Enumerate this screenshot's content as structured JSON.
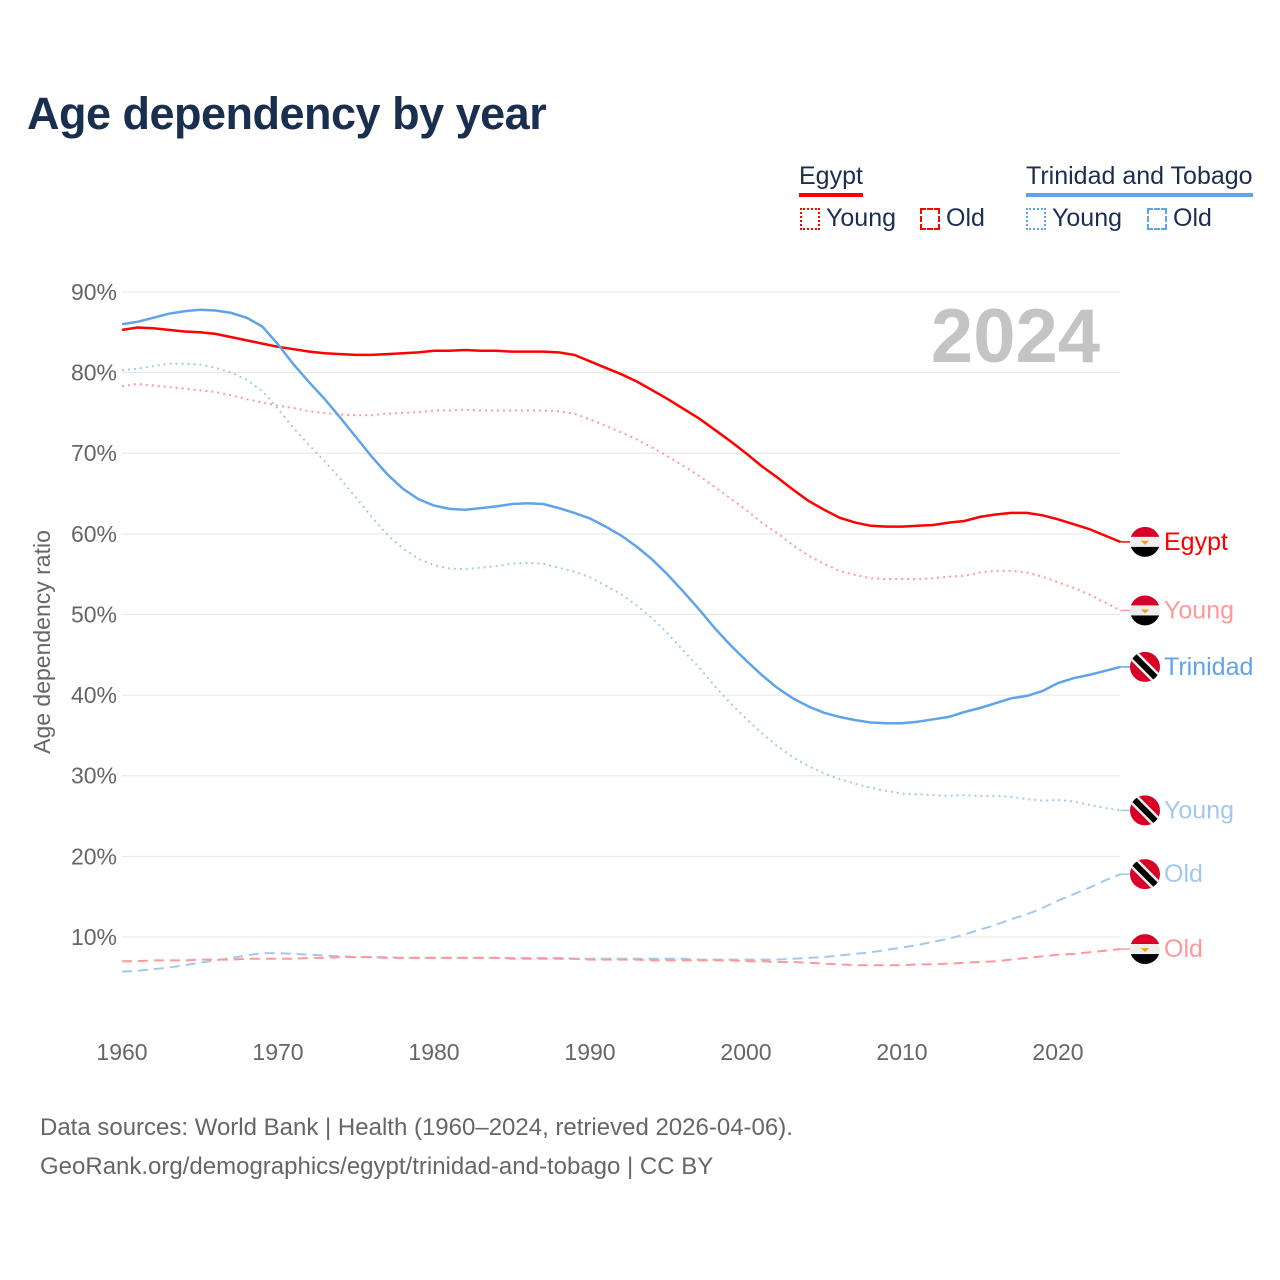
{
  "title": "Age dependency by year",
  "legend": {
    "groups": [
      {
        "name": "Egypt",
        "color": "#ff0000",
        "light": "#ff9999",
        "items": [
          "Young",
          "Old"
        ]
      },
      {
        "name": "Trinidad and Tobago",
        "color": "#5fa3e8",
        "light": "#a3c8f0",
        "items": [
          "Young",
          "Old"
        ]
      }
    ]
  },
  "year_badge": "2024",
  "source_line1": "Data sources: World Bank | Health (1960–2024, retrieved 2026-04-06).",
  "source_line2": "GeoRank.org/demographics/egypt/trinidad-and-tobago | CC BY",
  "chart_data": {
    "type": "line",
    "title": "Age dependency by year",
    "xlabel": "",
    "ylabel": "Age dependency ratio",
    "xlim": [
      1960,
      2024
    ],
    "ylim": [
      0,
      90
    ],
    "x_ticks": [
      1960,
      1970,
      1980,
      1990,
      2000,
      2010,
      2020
    ],
    "y_ticks": [
      10,
      20,
      30,
      40,
      50,
      60,
      70,
      80,
      90
    ],
    "y_tick_labels": [
      "10%",
      "20%",
      "30%",
      "40%",
      "50%",
      "60%",
      "70%",
      "80%",
      "90%"
    ],
    "grid": true,
    "x_start": 1960,
    "series": [
      {
        "name": "Egypt",
        "end_label": "Egypt",
        "country": "egypt",
        "style": "solid",
        "color": "#ff0000",
        "values": [
          85.3,
          85.6,
          85.5,
          85.3,
          85.1,
          85.0,
          84.8,
          84.4,
          84.0,
          83.6,
          83.2,
          82.9,
          82.6,
          82.4,
          82.3,
          82.2,
          82.2,
          82.3,
          82.4,
          82.5,
          82.7,
          82.7,
          82.8,
          82.7,
          82.7,
          82.6,
          82.6,
          82.6,
          82.5,
          82.2,
          81.4,
          80.6,
          79.8,
          78.9,
          77.8,
          76.7,
          75.5,
          74.3,
          72.9,
          71.5,
          70.0,
          68.4,
          67.0,
          65.5,
          64.1,
          63.0,
          62.0,
          61.4,
          61.0,
          60.9,
          60.9,
          61.0,
          61.1,
          61.4,
          61.6,
          62.1,
          62.4,
          62.6,
          62.6,
          62.3,
          61.8,
          61.2,
          60.6,
          59.8,
          59.0
        ]
      },
      {
        "name": "Egypt Young",
        "end_label": "Young",
        "country": "egypt",
        "style": "dotted",
        "color": "#ff9999",
        "values": [
          78.3,
          78.6,
          78.4,
          78.2,
          78.0,
          77.8,
          77.6,
          77.2,
          76.7,
          76.3,
          75.9,
          75.6,
          75.2,
          75.0,
          74.8,
          74.7,
          74.7,
          74.9,
          75.0,
          75.1,
          75.3,
          75.3,
          75.4,
          75.3,
          75.3,
          75.3,
          75.3,
          75.3,
          75.2,
          74.9,
          74.2,
          73.4,
          72.6,
          71.7,
          70.7,
          69.6,
          68.4,
          67.2,
          65.8,
          64.4,
          63.0,
          61.4,
          60.1,
          58.6,
          57.3,
          56.3,
          55.4,
          54.9,
          54.5,
          54.4,
          54.4,
          54.4,
          54.5,
          54.7,
          54.8,
          55.2,
          55.4,
          55.4,
          55.2,
          54.7,
          54.0,
          53.3,
          52.5,
          51.5,
          50.5
        ]
      },
      {
        "name": "Trinidad and Tobago",
        "end_label": "Trinidad",
        "country": "tt",
        "style": "solid",
        "color": "#5fa3e8",
        "values": [
          86.0,
          86.3,
          86.8,
          87.3,
          87.6,
          87.8,
          87.7,
          87.4,
          86.8,
          85.7,
          83.5,
          81.0,
          78.8,
          76.7,
          74.4,
          72.0,
          69.6,
          67.4,
          65.6,
          64.3,
          63.5,
          63.1,
          63.0,
          63.2,
          63.4,
          63.7,
          63.8,
          63.7,
          63.2,
          62.6,
          61.9,
          60.9,
          59.8,
          58.4,
          56.8,
          54.9,
          52.8,
          50.6,
          48.3,
          46.2,
          44.3,
          42.5,
          40.9,
          39.6,
          38.6,
          37.8,
          37.3,
          36.9,
          36.6,
          36.5,
          36.5,
          36.7,
          37.0,
          37.3,
          37.9,
          38.4,
          39.0,
          39.6,
          39.9,
          40.5,
          41.5,
          42.1,
          42.5,
          43.0,
          43.5
        ]
      },
      {
        "name": "Trinidad and Tobago Young",
        "end_label": "Young",
        "country": "tt",
        "style": "dotted",
        "color": "#a3c8f0",
        "values": [
          80.3,
          80.5,
          80.8,
          81.1,
          81.1,
          81.0,
          80.6,
          80.0,
          79.1,
          77.7,
          75.5,
          73.1,
          71.0,
          69.0,
          66.8,
          64.5,
          62.1,
          59.9,
          58.2,
          56.9,
          56.1,
          55.7,
          55.6,
          55.8,
          56.0,
          56.3,
          56.4,
          56.3,
          55.8,
          55.3,
          54.6,
          53.6,
          52.5,
          51.1,
          49.5,
          47.6,
          45.5,
          43.4,
          41.1,
          39.0,
          37.1,
          35.3,
          33.7,
          32.3,
          31.2,
          30.3,
          29.6,
          29.0,
          28.5,
          28.1,
          27.8,
          27.7,
          27.6,
          27.5,
          27.6,
          27.5,
          27.5,
          27.4,
          27.1,
          26.9,
          27.0,
          26.8,
          26.4,
          26.0,
          25.7
        ]
      },
      {
        "name": "Trinidad and Tobago Old",
        "end_label": "Old",
        "country": "tt",
        "style": "dashed",
        "color": "#a3c8f0",
        "values": [
          5.7,
          5.8,
          6.0,
          6.2,
          6.5,
          6.8,
          7.1,
          7.4,
          7.7,
          8.0,
          8.0,
          7.9,
          7.8,
          7.7,
          7.6,
          7.5,
          7.5,
          7.5,
          7.4,
          7.4,
          7.4,
          7.4,
          7.4,
          7.4,
          7.4,
          7.4,
          7.4,
          7.4,
          7.4,
          7.3,
          7.3,
          7.3,
          7.3,
          7.3,
          7.3,
          7.3,
          7.3,
          7.2,
          7.2,
          7.2,
          7.2,
          7.2,
          7.2,
          7.3,
          7.4,
          7.5,
          7.7,
          7.9,
          8.1,
          8.4,
          8.7,
          9.0,
          9.4,
          9.8,
          10.3,
          10.9,
          11.5,
          12.2,
          12.8,
          13.6,
          14.5,
          15.3,
          16.1,
          17.0,
          17.8
        ]
      },
      {
        "name": "Egypt Old",
        "end_label": "Old",
        "country": "egypt",
        "style": "dashed",
        "color": "#ff9999",
        "values": [
          7.0,
          7.0,
          7.1,
          7.1,
          7.1,
          7.2,
          7.2,
          7.2,
          7.3,
          7.3,
          7.3,
          7.3,
          7.4,
          7.4,
          7.5,
          7.5,
          7.5,
          7.4,
          7.4,
          7.4,
          7.4,
          7.4,
          7.4,
          7.4,
          7.4,
          7.3,
          7.3,
          7.3,
          7.3,
          7.3,
          7.2,
          7.2,
          7.2,
          7.2,
          7.1,
          7.1,
          7.1,
          7.1,
          7.1,
          7.1,
          7.0,
          7.0,
          6.9,
          6.9,
          6.8,
          6.7,
          6.6,
          6.5,
          6.5,
          6.5,
          6.5,
          6.6,
          6.6,
          6.7,
          6.8,
          6.9,
          7.0,
          7.2,
          7.4,
          7.6,
          7.8,
          7.9,
          8.1,
          8.3,
          8.5
        ]
      }
    ]
  }
}
